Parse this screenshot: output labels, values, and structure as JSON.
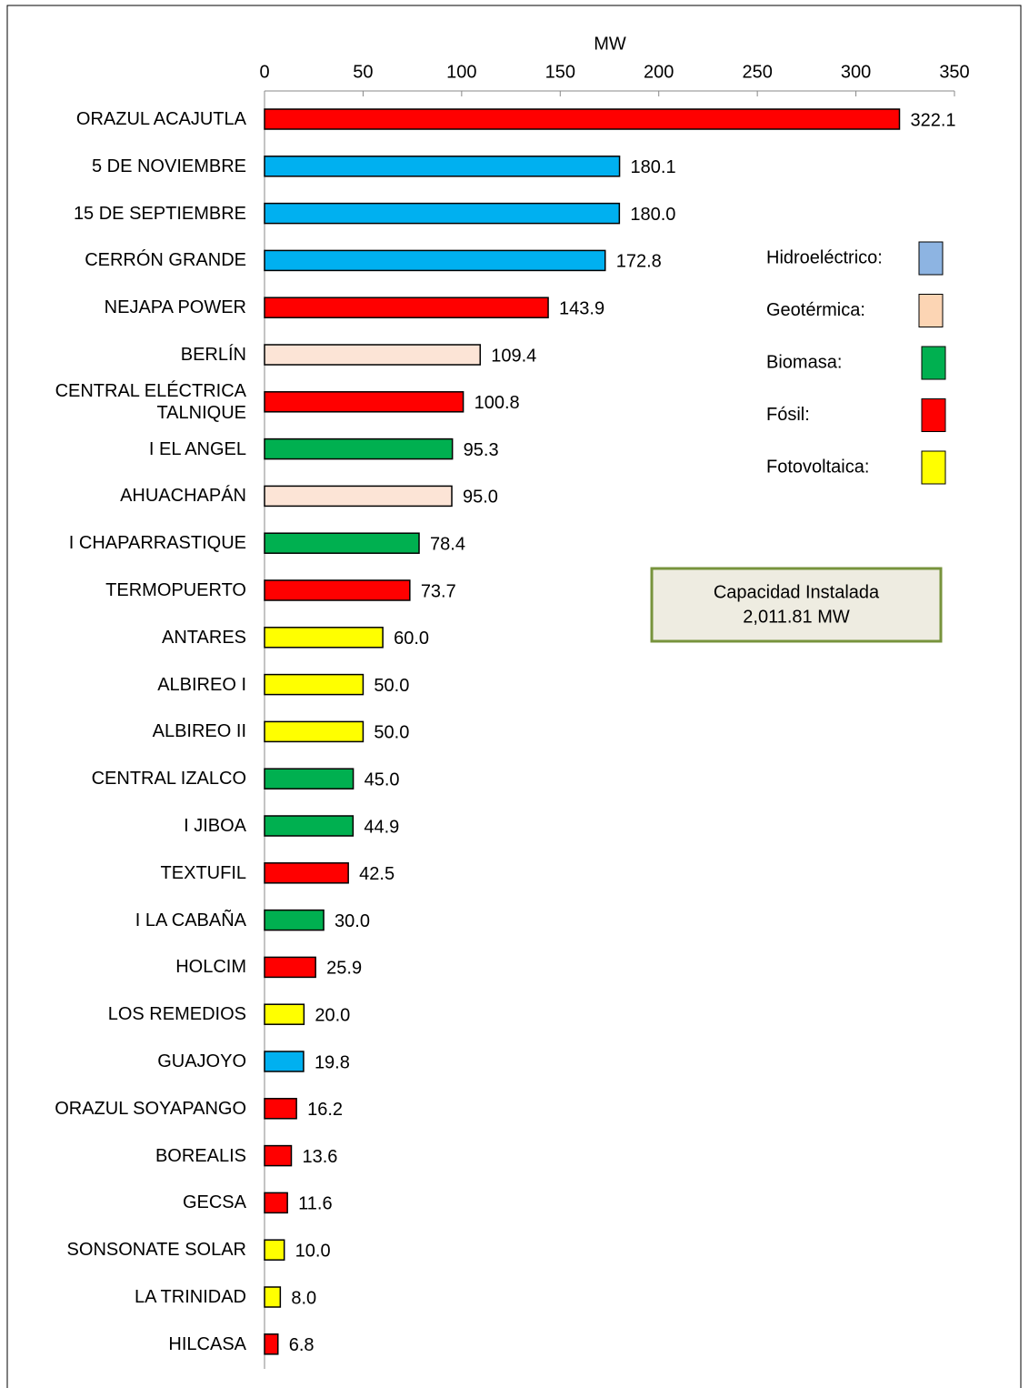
{
  "chart_data": {
    "type": "barh",
    "x_label": "MW",
    "categories": [
      "ORAZUL ACAJUTLA",
      "5 DE NOVIEMBRE",
      "15 DE SEPTIEMBRE",
      "CERRÓN GRANDE",
      "NEJAPA POWER",
      "BERLÍN",
      "CENTRAL ELÉCTRICA TALNIQUE",
      "I EL ANGEL",
      "AHUACHAPÁN",
      "I CHAPARRASTIQUE",
      "TERMOPUERTO",
      "ANTARES",
      "ALBIREO I",
      "ALBIREO II",
      "CENTRAL IZALCO",
      "I JIBOA",
      "TEXTUFIL",
      "I LA CABAÑA",
      "HOLCIM",
      "LOS REMEDIOS",
      "GUAJOYO",
      "ORAZUL SOYAPANGO",
      "BOREALIS",
      "GECSA",
      "SONSONATE SOLAR",
      "LA TRINIDAD",
      "HILCASA"
    ],
    "values": [
      322.1,
      180.1,
      180.0,
      172.8,
      143.9,
      109.4,
      100.8,
      95.3,
      95.0,
      78.4,
      73.7,
      60.0,
      50.0,
      50.0,
      45.0,
      44.9,
      42.5,
      30.0,
      25.9,
      20.0,
      19.8,
      16.2,
      13.6,
      11.6,
      10.0,
      8.0,
      6.8
    ],
    "value_labels": [
      "322.1",
      "180.1",
      "180.0",
      "172.8",
      "143.9",
      "109.4",
      "100.8",
      "95.3",
      "95.0",
      "78.4",
      "73.7",
      "60.0",
      "50.0",
      "50.0",
      "45.0",
      "44.9",
      "42.5",
      "30.0",
      "25.9",
      "20.0",
      "19.8",
      "16.2",
      "13.6",
      "11.6",
      "10.0",
      "8.0",
      "6.8"
    ],
    "colors": [
      "#ff0000",
      "#00b0f0",
      "#00b0f0",
      "#00b0f0",
      "#ff0000",
      "#fce4d6",
      "#ff0000",
      "#00b050",
      "#fce4d6",
      "#00b050",
      "#ff0000",
      "#ffff00",
      "#ffff00",
      "#ffff00",
      "#00b050",
      "#00b050",
      "#ff0000",
      "#00b050",
      "#ff0000",
      "#ffff00",
      "#00b0f0",
      "#ff0000",
      "#ff0000",
      "#ff0000",
      "#ffff00",
      "#ffff00",
      "#ff0000"
    ],
    "xlim": [
      0,
      350
    ],
    "xticks": [
      0,
      50,
      100,
      150,
      200,
      250,
      300,
      350
    ],
    "legend": [
      {
        "name": "Hidroeléctrico:",
        "color": "#8db4e2"
      },
      {
        "name": "Geotérmica:",
        "color": "#fcd5b4"
      },
      {
        "name": "Biomasa:",
        "color": "#00b050"
      },
      {
        "name": "Fósil:",
        "color": "#ff0000"
      },
      {
        "name": "Fotovoltaica:",
        "color": "#ffff00"
      }
    ],
    "annotation": [
      "Capacidad Instalada",
      "2,011.81 MW"
    ]
  }
}
